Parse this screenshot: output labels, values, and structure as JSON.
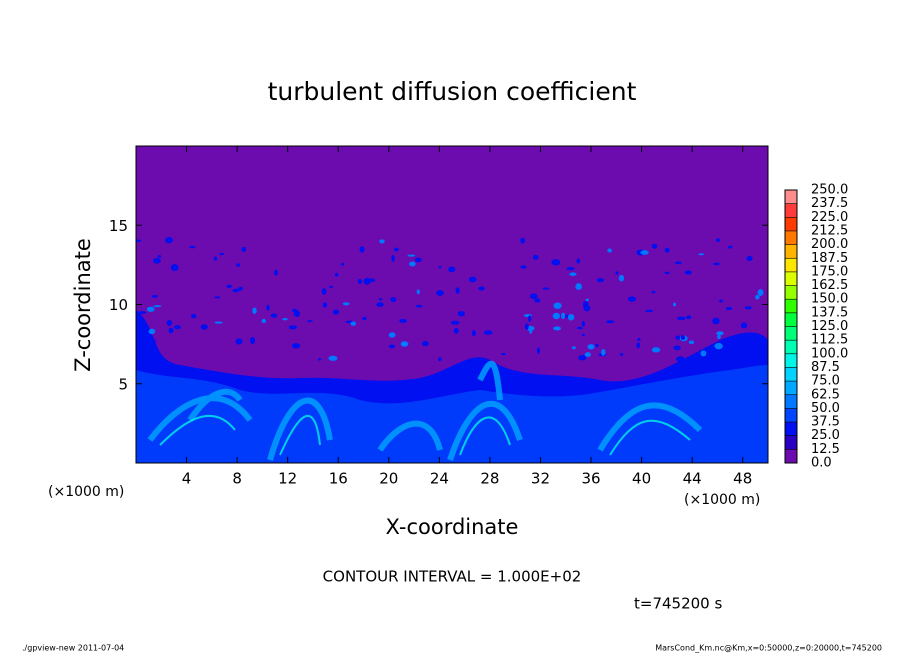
{
  "chart_data": {
    "type": "contour",
    "title": "turbulent diffusion coefficient",
    "xlabel": "X-coordinate",
    "ylabel": "Z-coordinate",
    "x_unit_left": "(×1000 m)",
    "x_unit_right": "(×1000 m)",
    "xlim": [
      0,
      50
    ],
    "xticks": [
      4,
      8,
      12,
      16,
      20,
      24,
      28,
      32,
      36,
      40,
      44,
      48
    ],
    "ylim": [
      0,
      20
    ],
    "yticks": [
      5,
      10,
      15
    ],
    "levels": [
      {
        "value": 0,
        "label": "0.0"
      },
      12.5,
      {
        "value": 25,
        "label": "25.0"
      },
      37.5,
      {
        "value": 50,
        "label": "50.0"
      },
      62.5,
      {
        "value": 75,
        "label": "75.0"
      },
      87.5,
      {
        "value": 100,
        "label": "100.0"
      },
      112.5,
      {
        "value": 125,
        "label": "125.0"
      },
      137.5,
      {
        "value": 150,
        "label": "150.0"
      },
      162.5,
      {
        "value": 175,
        "label": "175.0"
      },
      187.5,
      {
        "value": 200,
        "label": "200.0"
      },
      212.5,
      {
        "value": 225,
        "label": "225.0"
      },
      237.5,
      {
        "value": 250,
        "label": "250.0"
      }
    ],
    "colors": [
      "#6c0cae",
      "#2a00c4",
      "#0010f0",
      "#0046ff",
      "#0078ff",
      "#00a8ff",
      "#00d2ff",
      "#00f5e6",
      "#00ffb0",
      "#00ff78",
      "#00ff3c",
      "#30ff00",
      "#96ff00",
      "#dcff00",
      "#ffe600",
      "#ffb400",
      "#ff7800",
      "#ff3c00",
      "#ff3c3c",
      "#ff8c8c"
    ],
    "contour_interval": "CONTOUR INTERVAL = 1.000E+02",
    "time": "t=745200 s",
    "footer_left": "./gpview-new  2011-07-04",
    "footer_right": "MarsCond_Km.nc@Km,x=0:50000,z=0:20000,t=745200"
  }
}
